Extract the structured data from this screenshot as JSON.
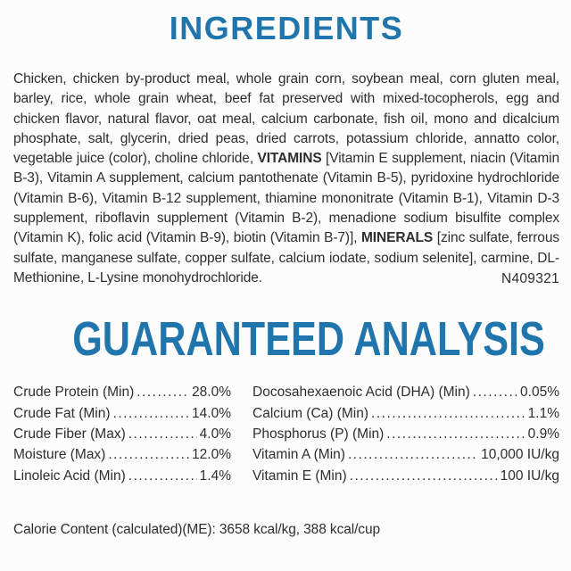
{
  "page": {
    "background": "#fcfcfc",
    "accent_blue": "#1f75ac",
    "text_color": "#2e2e2e"
  },
  "ingredients": {
    "title": "INGREDIENTS",
    "segments": [
      {
        "bold": false,
        "text": "Chicken, chicken by-product meal, whole grain corn, soybean meal, corn gluten meal, barley, rice, whole grain wheat, beef fat preserved with mixed-tocopherols, egg and chicken flavor, natural flavor, oat meal, calcium carbonate, fish oil, mono and dicalcium phosphate, salt, glycerin, dried peas, dried carrots, potassium chloride, annatto color, vegetable juice (color), choline chloride, "
      },
      {
        "bold": true,
        "text": "VITAMINS"
      },
      {
        "bold": false,
        "text": " [Vitamin E supplement, niacin (Vitamin B-3), Vitamin A supplement, calcium pantothenate (Vitamin B-5), pyridoxine hydrochloride (Vitamin B-6), Vitamin B-12 supplement, thiamine mononitrate (Vitamin B-1), Vitamin D-3 supplement, riboflavin supplement (Vitamin B-2), menadione sodium bisulfite complex (Vitamin K), folic acid (Vitamin B-9), biotin (Vitamin B-7)], "
      },
      {
        "bold": true,
        "text": "MINERALS"
      },
      {
        "bold": false,
        "text": " [zinc sulfate, ferrous sulfate, manganese sulfate, copper sulfate, calcium iodate, sodium selenite], carmine, DL-Methionine, L-Lysine monohydrochloride."
      }
    ],
    "product_code": "N409321"
  },
  "guaranteed_analysis": {
    "title": "GUARANTEED ANALYSIS",
    "left": [
      {
        "label": "Crude Protein (Min)",
        "value": "28.0%"
      },
      {
        "label": "Crude Fat (Min)",
        "value": "14.0%"
      },
      {
        "label": "Crude Fiber (Max)",
        "value": "4.0%"
      },
      {
        "label": "Moisture (Max)",
        "value": "12.0%"
      },
      {
        "label": "Linoleic Acid (Min)",
        "value": "1.4%"
      }
    ],
    "right": [
      {
        "label": "Docosahexaenoic Acid (DHA) (Min)",
        "value": "0.05%"
      },
      {
        "label": "Calcium (Ca) (Min)",
        "value": "1.1%"
      },
      {
        "label": "Phosphorus (P) (Min)",
        "value": "0.9%"
      },
      {
        "label": "Vitamin A (Min)",
        "value": "10,000 IU/kg"
      },
      {
        "label": "Vitamin E (Min)",
        "value": "100 IU/kg"
      }
    ]
  },
  "calorie_line": "Calorie Content (calculated)(ME): 3658 kcal/kg, 388 kcal/cup"
}
